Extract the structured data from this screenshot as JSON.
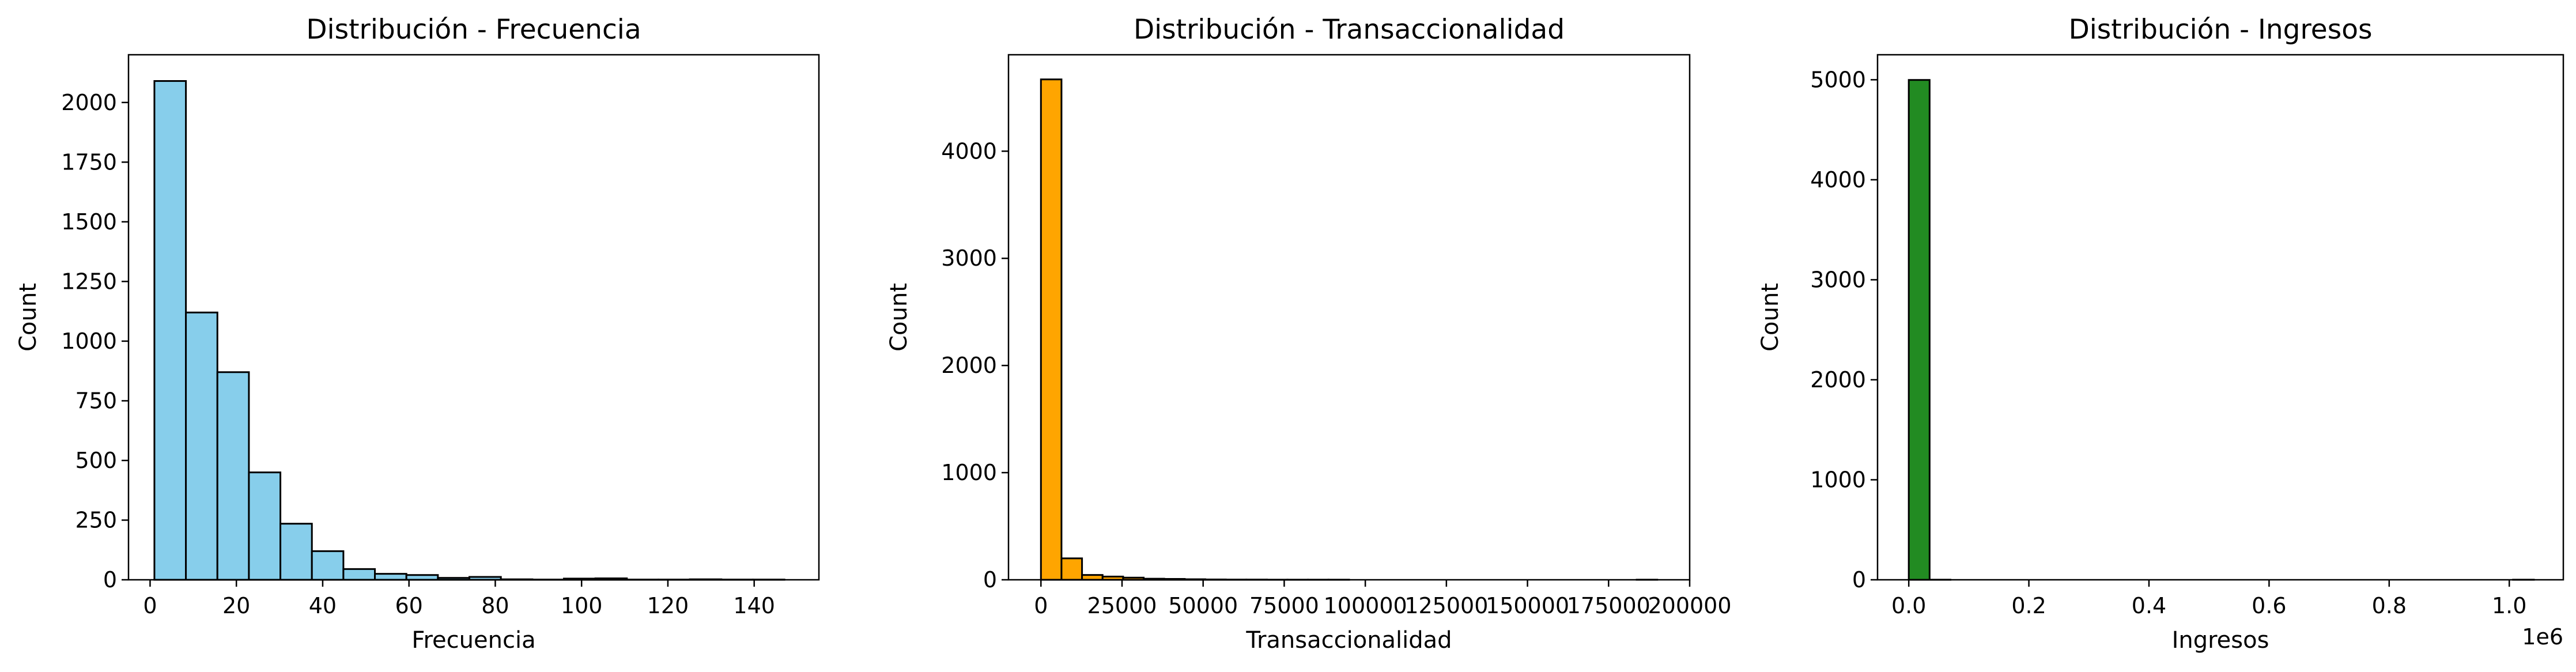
{
  "chart_data": [
    {
      "type": "bar",
      "subtype": "histogram",
      "title": "Distribución - Frecuencia",
      "xlabel": "Frecuencia",
      "ylabel": "Count",
      "color": "#87CEEB",
      "xlim": [
        -5,
        155
      ],
      "ylim": [
        0,
        2200
      ],
      "xticks": [
        0,
        20,
        40,
        60,
        80,
        100,
        120,
        140
      ],
      "yticks": [
        0,
        250,
        500,
        750,
        1000,
        1250,
        1500,
        1750,
        2000
      ],
      "bin_edges": [
        1,
        8.3,
        15.6,
        22.9,
        30.2,
        37.5,
        44.8,
        52.1,
        59.4,
        66.7,
        74,
        81.3,
        88.6,
        95.9,
        103.2,
        110.5,
        117.8,
        125.1,
        132.4,
        139.7,
        147
      ],
      "values": [
        2090,
        1120,
        870,
        450,
        235,
        120,
        45,
        25,
        20,
        8,
        12,
        2,
        1,
        5,
        6,
        1,
        1,
        2,
        1,
        1
      ]
    },
    {
      "type": "bar",
      "subtype": "histogram",
      "title": "Distribución - Transaccionalidad",
      "xlabel": "Transaccionalidad",
      "ylabel": "Count",
      "color": "#FFA500",
      "xlim": [
        -10000,
        200000
      ],
      "ylim": [
        0,
        4900
      ],
      "xticks": [
        0,
        25000,
        50000,
        75000,
        100000,
        125000,
        150000,
        175000,
        200000
      ],
      "yticks": [
        0,
        1000,
        2000,
        3000,
        4000
      ],
      "bin_edges": [
        0,
        6333,
        12667,
        19000,
        25333,
        31667,
        38000,
        44333,
        50667,
        57000,
        63333,
        69667,
        76000,
        82333,
        88667,
        95000,
        101333,
        107667,
        114000,
        120333,
        126667,
        133000,
        139333,
        145667,
        152000,
        158333,
        164667,
        171000,
        177333,
        183667,
        190000
      ],
      "values": [
        4670,
        200,
        45,
        30,
        20,
        10,
        8,
        5,
        3,
        2,
        2,
        1,
        1,
        1,
        1,
        0,
        0,
        0,
        0,
        0,
        0,
        0,
        0,
        0,
        0,
        0,
        0,
        0,
        0,
        1
      ]
    },
    {
      "type": "bar",
      "subtype": "histogram",
      "title": "Distribución - Ingresos",
      "xlabel": "Ingresos",
      "ylabel": "Count",
      "color": "#228B22",
      "offset_label": "1e6",
      "xlim": [
        -52000,
        1090000
      ],
      "ylim": [
        0,
        5250
      ],
      "xticks": [
        0,
        200000,
        400000,
        600000,
        800000,
        1000000
      ],
      "xtick_labels": [
        "0.0",
        "0.2",
        "0.4",
        "0.6",
        "0.8",
        "1.0"
      ],
      "yticks": [
        0,
        1000,
        2000,
        3000,
        4000,
        5000
      ],
      "bin_edges": [
        0,
        34700,
        69400,
        104100,
        138800,
        173500,
        208200,
        242900,
        277600,
        312300,
        347000,
        381700,
        416400,
        451100,
        485800,
        520500,
        555200,
        589900,
        624600,
        659300,
        694000,
        728700,
        763400,
        798100,
        832800,
        867500,
        902200,
        936900,
        971600,
        1006300,
        1041000
      ],
      "values": [
        4998,
        1,
        0,
        0,
        0,
        0,
        0,
        0,
        0,
        0,
        0,
        0,
        0,
        0,
        0,
        0,
        0,
        0,
        0,
        0,
        0,
        0,
        0,
        0,
        0,
        0,
        0,
        0,
        0,
        1
      ]
    }
  ]
}
